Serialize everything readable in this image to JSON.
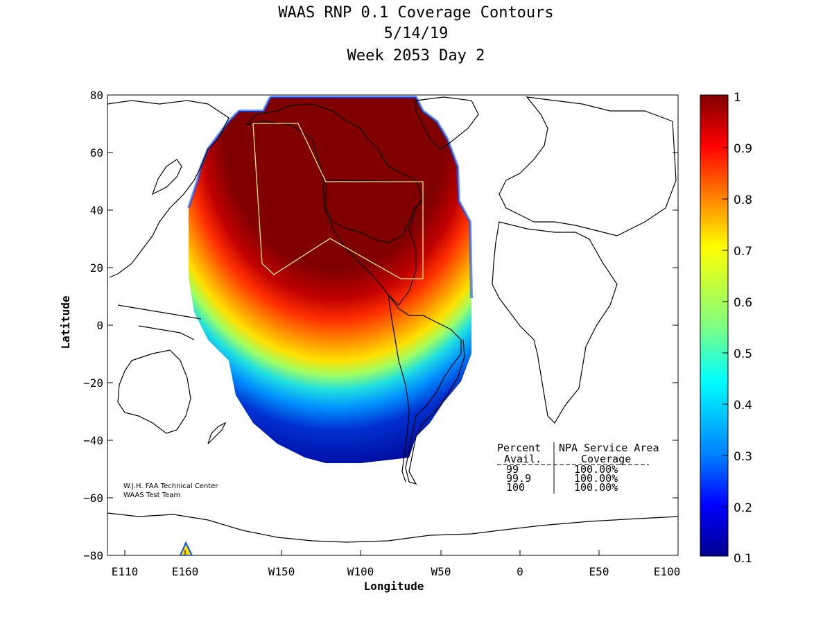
{
  "header": {
    "title": "WAAS RNP 0.1 Coverage Contours",
    "date": "5/14/19",
    "week_day": "Week 2053 Day 2"
  },
  "axes": {
    "xlabel": "Longitude",
    "ylabel": "Latitude",
    "x_ticks": [
      "E110",
      "E160",
      "W150",
      "W100",
      "W50",
      "0",
      "E50",
      "E100"
    ],
    "y_ticks": [
      "80",
      "60",
      "40",
      "20",
      "0",
      "−20",
      "−40",
      "−60",
      "−80"
    ]
  },
  "colorbar": {
    "ticks": [
      "1",
      "0.9",
      "0.8",
      "0.7",
      "0.6",
      "0.5",
      "0.4",
      "0.3",
      "0.2",
      "0.1"
    ],
    "min": 0.1,
    "max": 1,
    "colormap": "jet"
  },
  "credit": {
    "line1": "W.J.H. FAA Technical Center",
    "line2": "WAAS Test Team"
  },
  "coverage_table": {
    "header1": [
      "Percent",
      "NPA Service Area"
    ],
    "header2": [
      "Avail.",
      "Coverage"
    ],
    "rows": [
      [
        "99",
        "100.00%"
      ],
      [
        "99.9",
        "100.00%"
      ],
      [
        "100",
        "100.00%"
      ]
    ]
  },
  "colors": {
    "high": "#800000",
    "low": "#00008f",
    "service_area_outline": "#f0f070"
  }
}
